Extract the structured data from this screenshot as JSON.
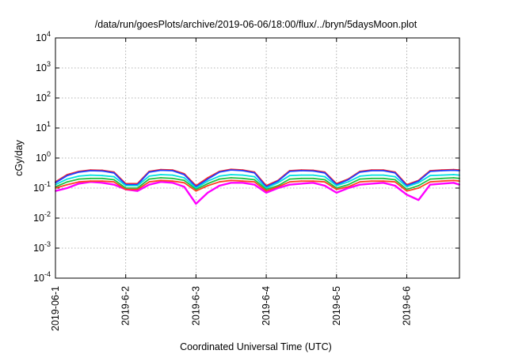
{
  "chart_data": {
    "type": "line",
    "title": "/data/run/goesPlots/archive/2019-06-06/18:00/flux/../bryn/5daysMoon.plot",
    "xlabel": "Coordinated Universal Time (UTC)",
    "ylabel": "cGy/day",
    "yscale": "log",
    "ylim": [
      0.0001,
      10000
    ],
    "y_ticks": [
      {
        "base": "10",
        "exp": "-4"
      },
      {
        "base": "10",
        "exp": "-3"
      },
      {
        "base": "10",
        "exp": "-2"
      },
      {
        "base": "10",
        "exp": "-1"
      },
      {
        "base": "10",
        "exp": "0"
      },
      {
        "base": "10",
        "exp": "1"
      },
      {
        "base": "10",
        "exp": "2"
      },
      {
        "base": "10",
        "exp": "3"
      },
      {
        "base": "10",
        "exp": "4"
      }
    ],
    "x_ticks": [
      "2019-06-1",
      "2019-6-2",
      "2019-6-3",
      "2019-6-4",
      "2019-6-5",
      "2019-6-6"
    ],
    "xlim": [
      "2019-06-01 00:00",
      "2019-06-06 18:00"
    ],
    "grid": true,
    "series": [
      {
        "color": "#ff00ff",
        "x": [
          "2019-06-01 00:00",
          "2019-06-01 04:00",
          "2019-06-01 08:00",
          "2019-06-01 12:00",
          "2019-06-01 16:00",
          "2019-06-01 20:00",
          "2019-06-02 00:00",
          "2019-06-02 04:00",
          "2019-06-02 08:00",
          "2019-06-02 12:00",
          "2019-06-02 16:00",
          "2019-06-02 20:00",
          "2019-06-03 00:00",
          "2019-06-03 04:00",
          "2019-06-03 08:00",
          "2019-06-03 12:00",
          "2019-06-03 16:00",
          "2019-06-03 20:00",
          "2019-06-04 00:00",
          "2019-06-04 04:00",
          "2019-06-04 08:00",
          "2019-06-04 12:00",
          "2019-06-04 16:00",
          "2019-06-04 20:00",
          "2019-06-05 00:00",
          "2019-06-05 04:00",
          "2019-06-05 08:00",
          "2019-06-05 12:00",
          "2019-06-05 16:00",
          "2019-06-05 20:00",
          "2019-06-06 00:00",
          "2019-06-06 04:00",
          "2019-06-06 08:00",
          "2019-06-06 12:00",
          "2019-06-06 16:00",
          "2019-06-06 18:00"
        ],
        "values": [
          0.08,
          0.1,
          0.14,
          0.16,
          0.15,
          0.13,
          0.09,
          0.08,
          0.13,
          0.16,
          0.15,
          0.11,
          0.03,
          0.07,
          0.12,
          0.15,
          0.15,
          0.13,
          0.07,
          0.1,
          0.13,
          0.14,
          0.15,
          0.12,
          0.07,
          0.1,
          0.13,
          0.14,
          0.15,
          0.12,
          0.06,
          0.04,
          0.13,
          0.14,
          0.15,
          0.13
        ]
      },
      {
        "color": "#ff2020",
        "x": [
          "2019-06-01 00:00",
          "2019-06-01 04:00",
          "2019-06-01 08:00",
          "2019-06-01 12:00",
          "2019-06-01 16:00",
          "2019-06-01 20:00",
          "2019-06-02 00:00",
          "2019-06-02 04:00",
          "2019-06-02 08:00",
          "2019-06-02 12:00",
          "2019-06-02 16:00",
          "2019-06-02 20:00",
          "2019-06-03 00:00",
          "2019-06-03 04:00",
          "2019-06-03 08:00",
          "2019-06-03 12:00",
          "2019-06-03 16:00",
          "2019-06-03 20:00",
          "2019-06-04 00:00",
          "2019-06-04 04:00",
          "2019-06-04 08:00",
          "2019-06-04 12:00",
          "2019-06-04 16:00",
          "2019-06-04 20:00",
          "2019-06-05 00:00",
          "2019-06-05 04:00",
          "2019-06-05 08:00",
          "2019-06-05 12:00",
          "2019-06-05 16:00",
          "2019-06-05 20:00",
          "2019-06-06 00:00",
          "2019-06-06 04:00",
          "2019-06-06 08:00",
          "2019-06-06 12:00",
          "2019-06-06 16:00",
          "2019-06-06 18:00"
        ],
        "values": [
          0.16,
          0.28,
          0.36,
          0.4,
          0.39,
          0.34,
          0.14,
          0.14,
          0.36,
          0.41,
          0.4,
          0.3,
          0.12,
          0.22,
          0.36,
          0.42,
          0.4,
          0.34,
          0.12,
          0.18,
          0.38,
          0.4,
          0.39,
          0.34,
          0.14,
          0.2,
          0.36,
          0.4,
          0.4,
          0.34,
          0.13,
          0.18,
          0.38,
          0.4,
          0.41,
          0.4
        ]
      },
      {
        "color": "#2040ff",
        "x": [
          "2019-06-01 00:00",
          "2019-06-01 04:00",
          "2019-06-01 08:00",
          "2019-06-01 12:00",
          "2019-06-01 16:00",
          "2019-06-01 20:00",
          "2019-06-02 00:00",
          "2019-06-02 04:00",
          "2019-06-02 08:00",
          "2019-06-02 12:00",
          "2019-06-02 16:00",
          "2019-06-02 20:00",
          "2019-06-03 00:00",
          "2019-06-03 04:00",
          "2019-06-03 08:00",
          "2019-06-03 12:00",
          "2019-06-03 16:00",
          "2019-06-03 20:00",
          "2019-06-04 00:00",
          "2019-06-04 04:00",
          "2019-06-04 08:00",
          "2019-06-04 12:00",
          "2019-06-04 16:00",
          "2019-06-04 20:00",
          "2019-06-05 00:00",
          "2019-06-05 04:00",
          "2019-06-05 08:00",
          "2019-06-05 12:00",
          "2019-06-05 16:00",
          "2019-06-05 20:00",
          "2019-06-06 00:00",
          "2019-06-06 04:00",
          "2019-06-06 08:00",
          "2019-06-06 12:00",
          "2019-06-06 16:00",
          "2019-06-06 18:00"
        ],
        "values": [
          0.15,
          0.26,
          0.34,
          0.38,
          0.37,
          0.32,
          0.13,
          0.13,
          0.34,
          0.39,
          0.38,
          0.28,
          0.11,
          0.2,
          0.34,
          0.4,
          0.38,
          0.32,
          0.11,
          0.17,
          0.36,
          0.38,
          0.37,
          0.32,
          0.13,
          0.19,
          0.34,
          0.38,
          0.38,
          0.32,
          0.12,
          0.17,
          0.36,
          0.38,
          0.39,
          0.38
        ]
      },
      {
        "color": "#00e0e0",
        "x": [
          "2019-06-01 00:00",
          "2019-06-01 04:00",
          "2019-06-01 08:00",
          "2019-06-01 12:00",
          "2019-06-01 16:00",
          "2019-06-01 20:00",
          "2019-06-02 00:00",
          "2019-06-02 04:00",
          "2019-06-02 08:00",
          "2019-06-02 12:00",
          "2019-06-02 16:00",
          "2019-06-02 20:00",
          "2019-06-03 00:00",
          "2019-06-03 04:00",
          "2019-06-03 08:00",
          "2019-06-03 12:00",
          "2019-06-03 16:00",
          "2019-06-03 20:00",
          "2019-06-04 00:00",
          "2019-06-04 04:00",
          "2019-06-04 08:00",
          "2019-06-04 12:00",
          "2019-06-04 16:00",
          "2019-06-04 20:00",
          "2019-06-05 00:00",
          "2019-06-05 04:00",
          "2019-06-05 08:00",
          "2019-06-05 12:00",
          "2019-06-05 16:00",
          "2019-06-05 20:00",
          "2019-06-06 00:00",
          "2019-06-06 04:00",
          "2019-06-06 08:00",
          "2019-06-06 12:00",
          "2019-06-06 16:00",
          "2019-06-06 18:00"
        ],
        "values": [
          0.13,
          0.2,
          0.25,
          0.27,
          0.26,
          0.24,
          0.12,
          0.12,
          0.25,
          0.28,
          0.27,
          0.22,
          0.1,
          0.17,
          0.25,
          0.28,
          0.27,
          0.24,
          0.1,
          0.15,
          0.26,
          0.27,
          0.27,
          0.24,
          0.12,
          0.16,
          0.25,
          0.27,
          0.27,
          0.24,
          0.11,
          0.15,
          0.26,
          0.27,
          0.28,
          0.27
        ]
      },
      {
        "color": "#20c040",
        "x": [
          "2019-06-01 00:00",
          "2019-06-01 04:00",
          "2019-06-01 08:00",
          "2019-06-01 12:00",
          "2019-06-01 16:00",
          "2019-06-01 20:00",
          "2019-06-02 00:00",
          "2019-06-02 04:00",
          "2019-06-02 08:00",
          "2019-06-02 12:00",
          "2019-06-02 16:00",
          "2019-06-02 20:00",
          "2019-06-03 00:00",
          "2019-06-03 04:00",
          "2019-06-03 08:00",
          "2019-06-03 12:00",
          "2019-06-03 16:00",
          "2019-06-03 20:00",
          "2019-06-04 00:00",
          "2019-06-04 04:00",
          "2019-06-04 08:00",
          "2019-06-04 12:00",
          "2019-06-04 16:00",
          "2019-06-04 20:00",
          "2019-06-05 00:00",
          "2019-06-05 04:00",
          "2019-06-05 08:00",
          "2019-06-05 12:00",
          "2019-06-05 16:00",
          "2019-06-05 20:00",
          "2019-06-06 00:00",
          "2019-06-06 04:00",
          "2019-06-06 08:00",
          "2019-06-06 12:00",
          "2019-06-06 16:00",
          "2019-06-06 18:00"
        ],
        "values": [
          0.11,
          0.16,
          0.2,
          0.21,
          0.21,
          0.19,
          0.1,
          0.1,
          0.2,
          0.22,
          0.21,
          0.18,
          0.09,
          0.14,
          0.2,
          0.22,
          0.21,
          0.19,
          0.09,
          0.12,
          0.2,
          0.21,
          0.21,
          0.19,
          0.1,
          0.13,
          0.2,
          0.21,
          0.21,
          0.19,
          0.09,
          0.12,
          0.2,
          0.21,
          0.22,
          0.21
        ]
      },
      {
        "color": "#ff4020",
        "x": [
          "2019-06-01 00:00",
          "2019-06-01 04:00",
          "2019-06-01 08:00",
          "2019-06-01 12:00",
          "2019-06-01 16:00",
          "2019-06-01 20:00",
          "2019-06-02 00:00",
          "2019-06-02 04:00",
          "2019-06-02 08:00",
          "2019-06-02 12:00",
          "2019-06-02 16:00",
          "2019-06-02 20:00",
          "2019-06-03 00:00",
          "2019-06-03 04:00",
          "2019-06-03 08:00",
          "2019-06-03 12:00",
          "2019-06-03 16:00",
          "2019-06-03 20:00",
          "2019-06-04 00:00",
          "2019-06-04 04:00",
          "2019-06-04 08:00",
          "2019-06-04 12:00",
          "2019-06-04 16:00",
          "2019-06-04 20:00",
          "2019-06-05 00:00",
          "2019-06-05 04:00",
          "2019-06-05 08:00",
          "2019-06-05 12:00",
          "2019-06-05 16:00",
          "2019-06-05 20:00",
          "2019-06-06 00:00",
          "2019-06-06 04:00",
          "2019-06-06 08:00",
          "2019-06-06 12:00",
          "2019-06-06 16:00",
          "2019-06-06 18:00"
        ],
        "values": [
          0.1,
          0.13,
          0.16,
          0.17,
          0.17,
          0.16,
          0.09,
          0.09,
          0.16,
          0.18,
          0.17,
          0.15,
          0.08,
          0.12,
          0.16,
          0.18,
          0.17,
          0.16,
          0.08,
          0.11,
          0.16,
          0.17,
          0.17,
          0.16,
          0.09,
          0.11,
          0.16,
          0.17,
          0.17,
          0.16,
          0.08,
          0.1,
          0.16,
          0.17,
          0.18,
          0.17
        ]
      }
    ]
  }
}
